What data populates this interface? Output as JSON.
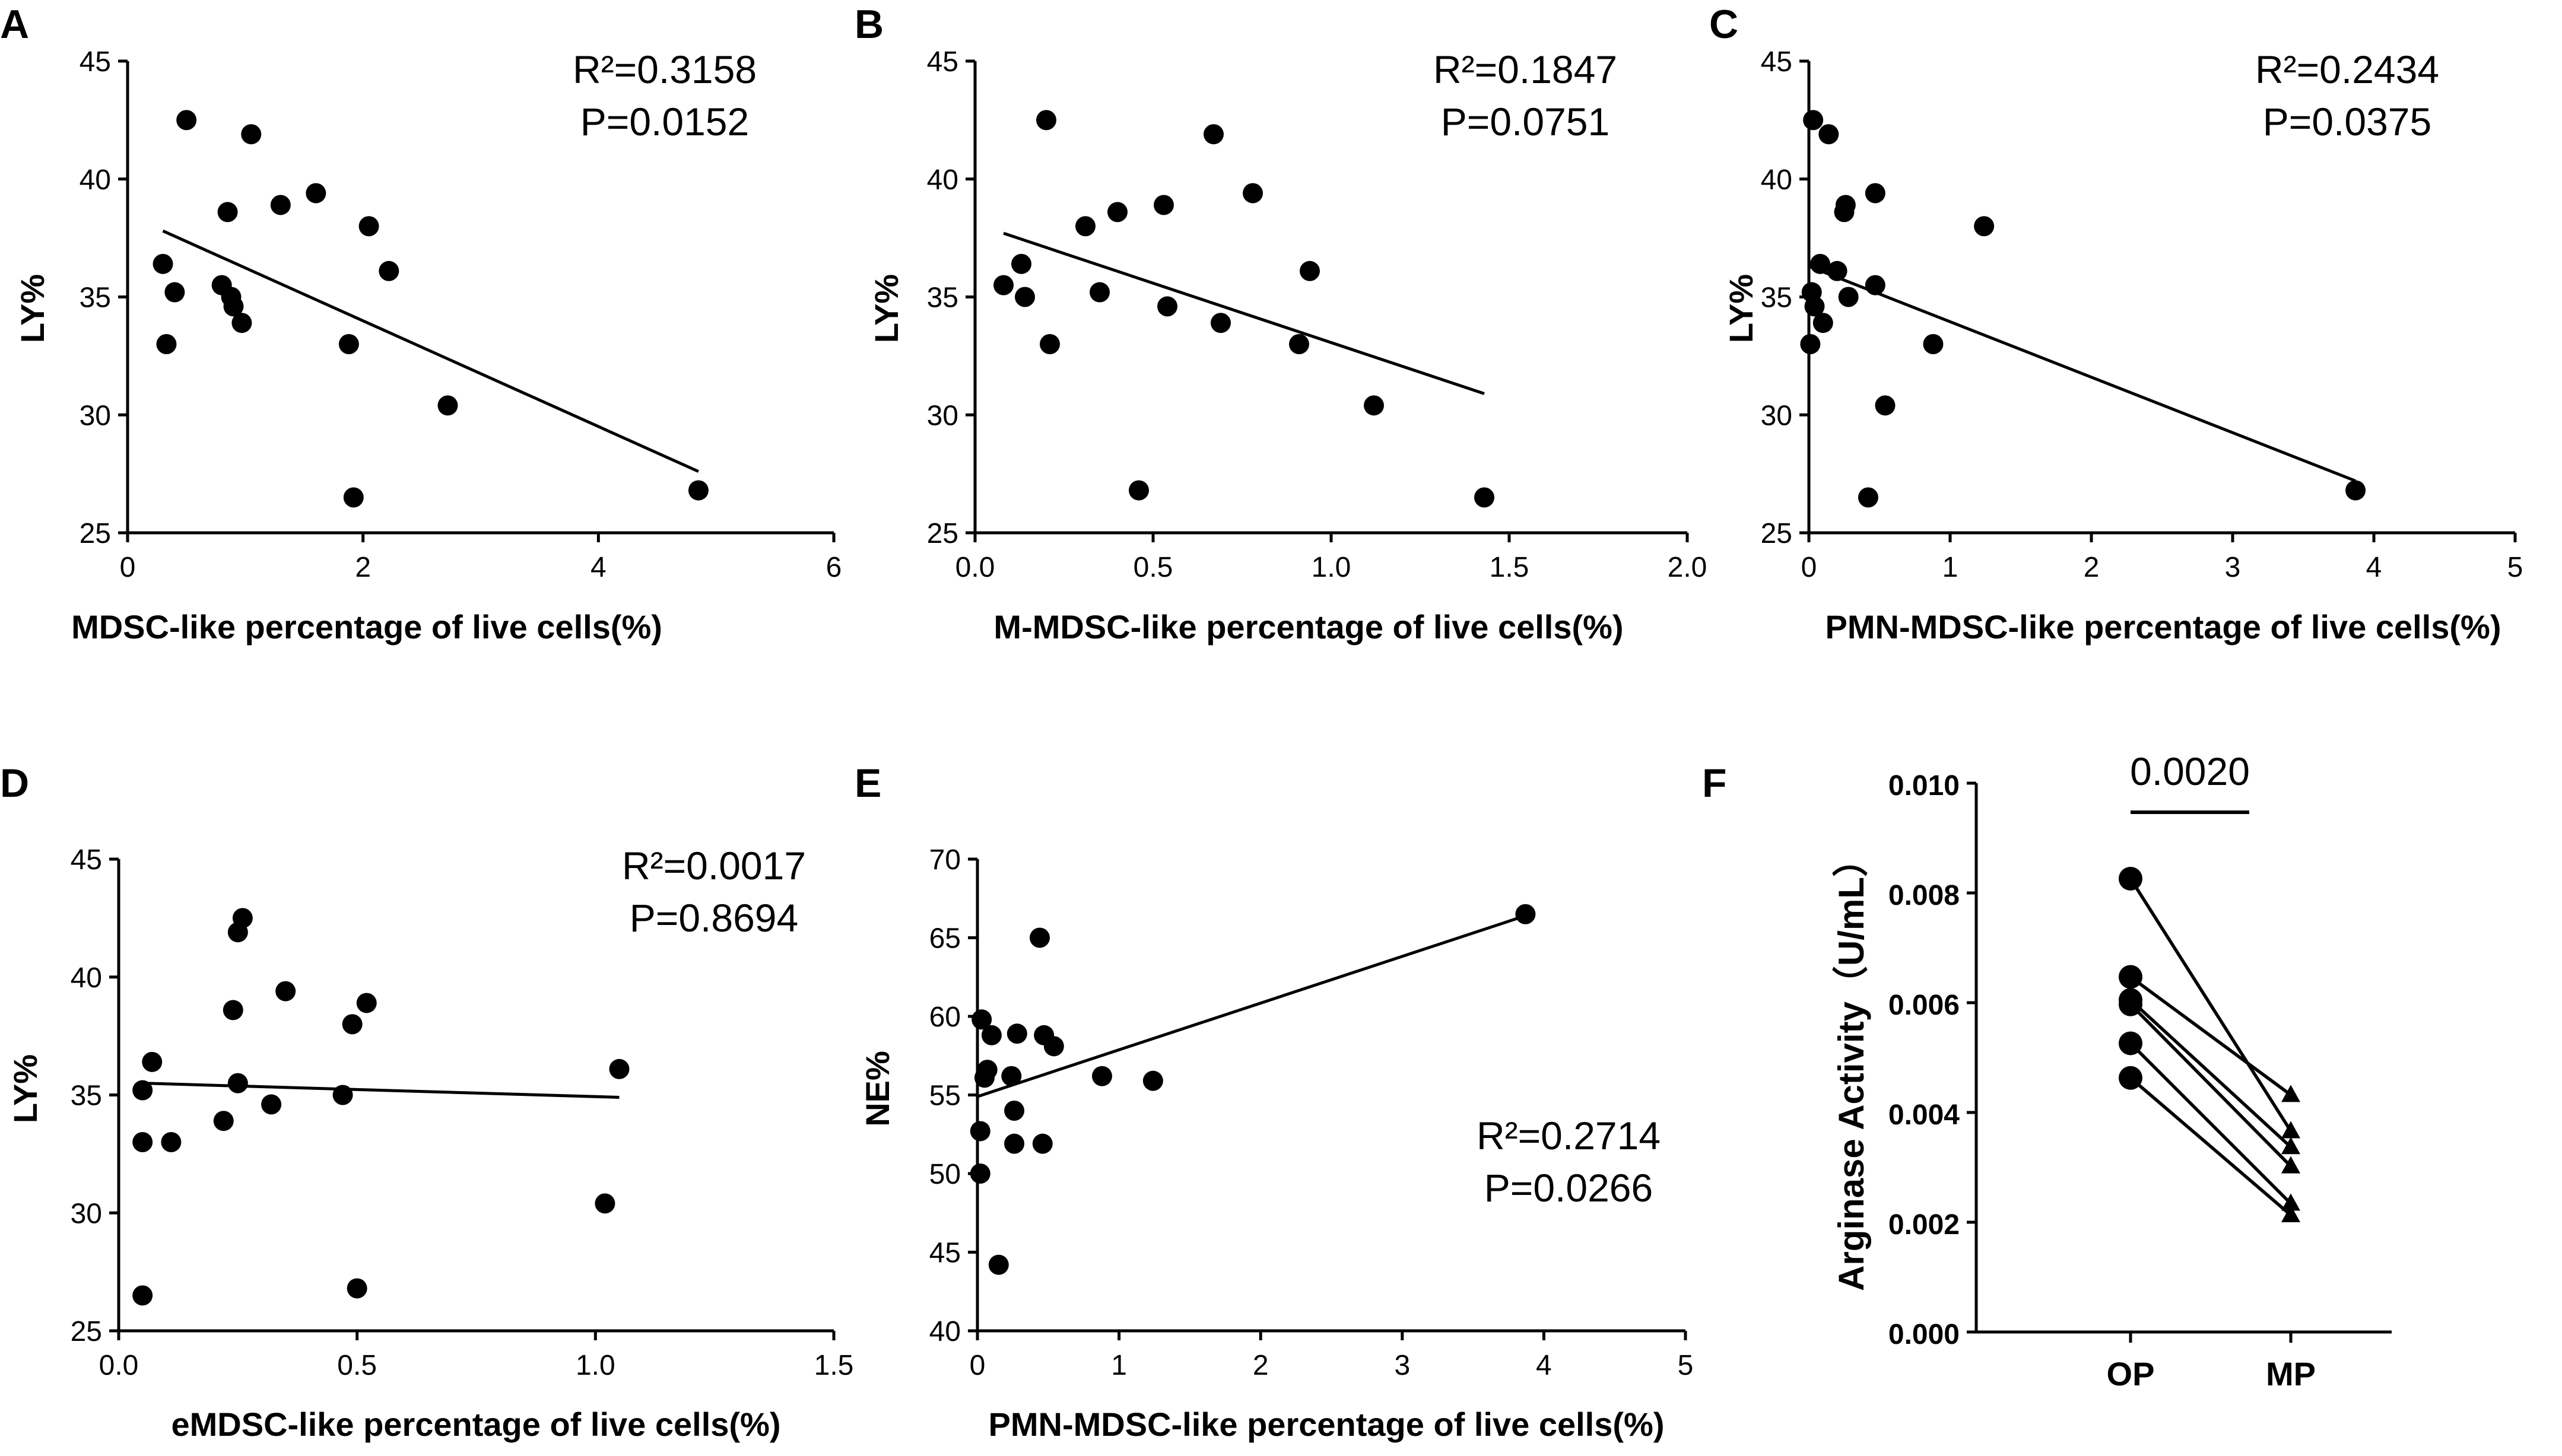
{
  "figure": {
    "panels": [
      {
        "label": "A",
        "type": "scatter",
        "xlabel": "MDSC-like percentage of live cells(%)",
        "ylabel": "LY%",
        "xlim": [
          0,
          6
        ],
        "ylim": [
          25,
          45
        ],
        "xticks": [
          "0",
          "2",
          "4",
          "6"
        ],
        "yticks": [
          "25",
          "30",
          "35",
          "40",
          "45"
        ],
        "stat": [
          "R²=0.3158",
          "P=0.0152"
        ],
        "x": [
          0.5,
          1.05,
          0.3,
          0.4,
          0.33,
          0.85,
          0.88,
          0.9,
          0.97,
          0.8,
          1.3,
          1.6,
          2.05,
          2.22,
          1.88,
          2.72,
          1.92,
          4.85
        ],
        "y": [
          42.5,
          41.9,
          36.4,
          35.2,
          33.0,
          38.6,
          35.0,
          34.6,
          33.9,
          35.5,
          38.9,
          39.4,
          38.0,
          36.1,
          33.0,
          30.4,
          26.5,
          26.8
        ],
        "fit": [
          [
            0.3,
            37.8
          ],
          [
            4.85,
            27.6
          ]
        ]
      },
      {
        "label": "B",
        "type": "scatter",
        "xlabel": "M-MDSC-like percentage of live cells(%)",
        "ylabel": "LY%",
        "xlim": [
          0,
          2.0
        ],
        "ylim": [
          25,
          45
        ],
        "xticks": [
          "0.0",
          "0.5",
          "1.0",
          "1.5",
          "2.0"
        ],
        "yticks": [
          "25",
          "30",
          "35",
          "40",
          "45"
        ],
        "stat": [
          "R²=0.1847",
          "P=0.0751"
        ],
        "x": [
          0.2,
          0.67,
          0.08,
          0.13,
          0.14,
          0.21,
          0.31,
          0.4,
          0.35,
          0.53,
          0.54,
          0.69,
          0.78,
          0.94,
          0.91,
          1.12,
          0.46,
          1.43
        ],
        "y": [
          42.5,
          41.9,
          35.5,
          36.4,
          35.0,
          33.0,
          38.0,
          38.6,
          35.2,
          38.9,
          34.6,
          33.9,
          39.4,
          36.1,
          33.0,
          30.4,
          26.8,
          26.5
        ],
        "fit": [
          [
            0.08,
            37.7
          ],
          [
            1.43,
            30.9
          ]
        ]
      },
      {
        "label": "C",
        "type": "scatter",
        "xlabel": "PMN-MDSC-like percentage of live cells(%)",
        "ylabel": "LY%",
        "xlim": [
          0,
          5
        ],
        "ylim": [
          25,
          45
        ],
        "xticks": [
          "0",
          "1",
          "2",
          "3",
          "4",
          "5"
        ],
        "yticks": [
          "25",
          "30",
          "35",
          "40",
          "45"
        ],
        "stat": [
          "R²=0.2434",
          "P=0.0375"
        ],
        "x": [
          0.03,
          0.14,
          0.25,
          0.26,
          0.47,
          1.24,
          0.08,
          0.2,
          0.02,
          0.04,
          0.1,
          0.28,
          0.47,
          0.01,
          0.88,
          0.54,
          0.42,
          3.87
        ],
        "y": [
          42.5,
          41.9,
          38.6,
          38.9,
          39.4,
          38.0,
          36.4,
          36.1,
          35.2,
          34.6,
          33.9,
          35.0,
          35.5,
          33.0,
          33.0,
          30.4,
          26.5,
          26.8
        ],
        "fit": [
          [
            0.0,
            36.3
          ],
          [
            3.87,
            27.2
          ]
        ]
      },
      {
        "label": "D",
        "type": "scatter",
        "xlabel": "eMDSC-like percentage of live cells(%)",
        "ylabel": "LY%",
        "xlim": [
          0,
          1.5
        ],
        "ylim": [
          25,
          45
        ],
        "xticks": [
          "0.0",
          "0.5",
          "1.0",
          "1.5"
        ],
        "yticks": [
          "25",
          "30",
          "35",
          "40",
          "45"
        ],
        "stat": [
          "R²=0.0017",
          "P=0.8694"
        ],
        "x": [
          0.26,
          0.25,
          0.24,
          0.35,
          0.52,
          0.49,
          0.07,
          0.05,
          0.05,
          0.11,
          0.22,
          0.25,
          0.32,
          0.47,
          1.05,
          1.02,
          0.05,
          0.5
        ],
        "y": [
          42.5,
          41.9,
          38.6,
          39.4,
          38.9,
          38.0,
          36.4,
          35.2,
          33.0,
          33.0,
          33.9,
          35.5,
          34.6,
          35.0,
          36.1,
          30.4,
          26.5,
          26.8
        ],
        "fit": [
          [
            0.05,
            35.5
          ],
          [
            1.05,
            34.9
          ]
        ]
      },
      {
        "label": "E",
        "type": "scatter",
        "xlabel": "PMN-MDSC-like percentage of live cells(%)",
        "ylabel": "NE%",
        "xlim": [
          0,
          5
        ],
        "ylim": [
          40,
          70
        ],
        "xticks": [
          "0",
          "1",
          "2",
          "3",
          "4",
          "5"
        ],
        "yticks": [
          "40",
          "45",
          "50",
          "55",
          "60",
          "65",
          "70"
        ],
        "stat": [
          "R²=0.2714",
          "P=0.0266"
        ],
        "x": [
          0.44,
          0.03,
          0.1,
          0.28,
          0.47,
          0.54,
          0.07,
          0.05,
          0.24,
          0.02,
          0.88,
          1.24,
          0.26,
          0.26,
          0.46,
          0.02,
          0.15,
          3.87
        ],
        "y": [
          65.0,
          59.8,
          58.8,
          58.9,
          58.8,
          58.1,
          56.6,
          56.1,
          56.2,
          52.7,
          56.2,
          55.9,
          54.0,
          51.9,
          51.9,
          50.0,
          44.2,
          66.5
        ],
        "fit": [
          [
            0.0,
            54.9
          ],
          [
            3.87,
            66.4
          ]
        ]
      },
      {
        "label": "F",
        "type": "paired",
        "ylabel": "Arginase Activity（U/mL）",
        "categories": [
          "OP",
          "MP"
        ],
        "ylim": [
          0,
          0.01
        ],
        "yticks": [
          "0.000",
          "0.002",
          "0.004",
          "0.006",
          "0.008",
          "0.010"
        ],
        "significance": "0.0020",
        "pairs": [
          [
            0.00826,
            0.00366
          ],
          [
            0.00647,
            0.00432
          ],
          [
            0.00605,
            0.00337
          ],
          [
            0.00597,
            0.00302
          ],
          [
            0.00526,
            0.00234
          ],
          [
            0.00463,
            0.00213
          ]
        ]
      }
    ]
  }
}
